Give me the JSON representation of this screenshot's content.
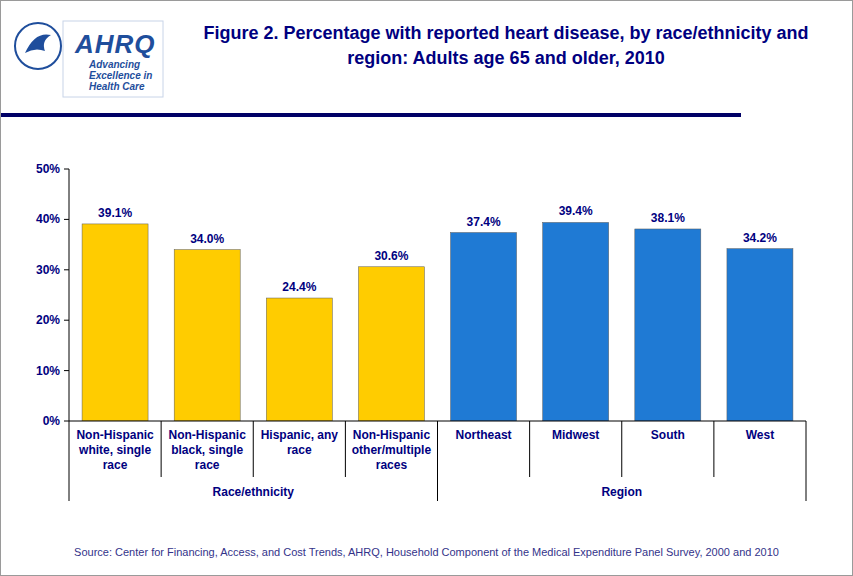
{
  "chart_data": {
    "type": "bar",
    "title": "Figure 2. Percentage with reported heart disease, by race/ethnicity and region: Adults age 65 and older, 2010",
    "categories": [
      "Non-Hispanic white, single race",
      "Non-Hispanic black, single race",
      "Hispanic, any race",
      "Non-Hispanic other/multiple races",
      "Northeast",
      "Midwest",
      "South",
      "West"
    ],
    "values": [
      39.1,
      34.0,
      24.4,
      30.6,
      37.4,
      39.4,
      38.1,
      34.2
    ],
    "value_labels": [
      "39.1%",
      "34.0%",
      "24.4%",
      "30.6%",
      "37.4%",
      "39.4%",
      "38.1%",
      "34.2%"
    ],
    "colors": [
      "#ffcc00",
      "#ffcc00",
      "#ffcc00",
      "#ffcc00",
      "#1f7ad4",
      "#1f7ad4",
      "#1f7ad4",
      "#1f7ad4"
    ],
    "groups": [
      {
        "label": "Race/ethnicity",
        "size": 4
      },
      {
        "label": "Region",
        "size": 4
      }
    ],
    "ylim": [
      0,
      50
    ],
    "yticks": [
      {
        "value": 0,
        "label": "0%"
      },
      {
        "value": 10,
        "label": "10%"
      },
      {
        "value": 20,
        "label": "20%"
      },
      {
        "value": 30,
        "label": "30%"
      },
      {
        "value": 40,
        "label": "40%"
      },
      {
        "value": 50,
        "label": "50%"
      }
    ],
    "grid": false,
    "data_labels": true,
    "source": "Source: Center for Financing, Access, and Cost Trends, AHRQ, Household Component of the Medical Expenditure Panel Survey, 2000 and 2010",
    "logo": {
      "name": "AHRQ",
      "tagline": "Advancing Excellence in Health Care"
    }
  }
}
